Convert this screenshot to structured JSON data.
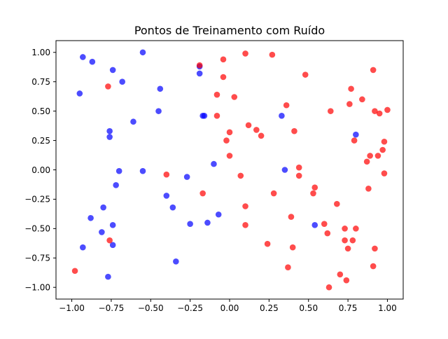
{
  "chart_data": {
    "type": "scatter",
    "title": "Pontos de Treinamento com Ruído",
    "xlabel": "",
    "ylabel": "",
    "xlim": [
      -1.1,
      1.1
    ],
    "ylim": [
      -1.1,
      1.1
    ],
    "xticks": [
      -1.0,
      -0.75,
      -0.5,
      -0.25,
      0.0,
      0.25,
      0.5,
      0.75,
      1.0
    ],
    "xtick_labels": [
      "−1.00",
      "−0.75",
      "−0.50",
      "−0.25",
      "0.00",
      "0.25",
      "0.50",
      "0.75",
      "1.00"
    ],
    "yticks": [
      -1.0,
      -0.75,
      -0.5,
      -0.25,
      0.0,
      0.25,
      0.5,
      0.75,
      1.0
    ],
    "ytick_labels": [
      "−1.00",
      "−0.75",
      "−0.50",
      "−0.25",
      "0.00",
      "0.25",
      "0.50",
      "0.75",
      "1.00"
    ],
    "grid": false,
    "series": [
      {
        "color": "#0000ff",
        "alpha": 0.7,
        "points": [
          [
            -0.93,
            0.96
          ],
          [
            -0.87,
            0.92
          ],
          [
            -0.55,
            1.0
          ],
          [
            -0.95,
            0.65
          ],
          [
            -0.74,
            0.85
          ],
          [
            -0.68,
            0.75
          ],
          [
            -0.19,
            0.82
          ],
          [
            -0.19,
            0.88
          ],
          [
            -0.44,
            0.69
          ],
          [
            -0.45,
            0.5
          ],
          [
            -0.16,
            0.46
          ],
          [
            -0.17,
            0.46
          ],
          [
            -0.61,
            0.41
          ],
          [
            -0.76,
            0.33
          ],
          [
            -0.76,
            0.28
          ],
          [
            0.33,
            0.46
          ],
          [
            0.8,
            0.3
          ],
          [
            -0.7,
            -0.01
          ],
          [
            -0.55,
            -0.01
          ],
          [
            -0.1,
            0.05
          ],
          [
            0.35,
            0.0
          ],
          [
            -0.72,
            -0.13
          ],
          [
            -0.27,
            -0.06
          ],
          [
            -0.4,
            -0.22
          ],
          [
            -0.8,
            -0.32
          ],
          [
            -0.36,
            -0.32
          ],
          [
            -0.88,
            -0.41
          ],
          [
            -0.74,
            -0.47
          ],
          [
            -0.81,
            -0.53
          ],
          [
            -0.25,
            -0.46
          ],
          [
            -0.14,
            -0.45
          ],
          [
            -0.07,
            -0.38
          ],
          [
            0.54,
            -0.47
          ],
          [
            -0.74,
            -0.64
          ],
          [
            -0.93,
            -0.66
          ],
          [
            -0.34,
            -0.78
          ],
          [
            -0.77,
            -0.91
          ]
        ]
      },
      {
        "color": "#ff0000",
        "alpha": 0.7,
        "points": [
          [
            -0.19,
            0.89
          ],
          [
            0.1,
            0.99
          ],
          [
            0.27,
            0.98
          ],
          [
            -0.04,
            0.94
          ],
          [
            -0.77,
            0.71
          ],
          [
            -0.04,
            0.79
          ],
          [
            0.48,
            0.81
          ],
          [
            0.91,
            0.85
          ],
          [
            -0.08,
            0.64
          ],
          [
            0.03,
            0.62
          ],
          [
            0.77,
            0.69
          ],
          [
            0.84,
            0.6
          ],
          [
            0.36,
            0.55
          ],
          [
            0.76,
            0.56
          ],
          [
            0.64,
            0.5
          ],
          [
            0.92,
            0.5
          ],
          [
            0.95,
            0.48
          ],
          [
            1.0,
            0.51
          ],
          [
            -0.08,
            0.46
          ],
          [
            0.12,
            0.38
          ],
          [
            0.17,
            0.34
          ],
          [
            0.0,
            0.32
          ],
          [
            0.41,
            0.33
          ],
          [
            0.2,
            0.29
          ],
          [
            -0.02,
            0.25
          ],
          [
            0.79,
            0.25
          ],
          [
            0.98,
            0.24
          ],
          [
            0.97,
            0.17
          ],
          [
            0.89,
            0.12
          ],
          [
            0.94,
            0.12
          ],
          [
            0.0,
            0.12
          ],
          [
            0.87,
            0.07
          ],
          [
            0.44,
            0.02
          ],
          [
            0.98,
            -0.03
          ],
          [
            -0.4,
            -0.04
          ],
          [
            0.44,
            -0.05
          ],
          [
            0.07,
            -0.05
          ],
          [
            0.54,
            -0.15
          ],
          [
            0.88,
            -0.16
          ],
          [
            -0.17,
            -0.2
          ],
          [
            0.28,
            -0.2
          ],
          [
            0.53,
            -0.2
          ],
          [
            0.68,
            -0.29
          ],
          [
            0.1,
            -0.31
          ],
          [
            0.39,
            -0.4
          ],
          [
            0.1,
            -0.47
          ],
          [
            0.6,
            -0.46
          ],
          [
            0.73,
            -0.5
          ],
          [
            0.8,
            -0.5
          ],
          [
            0.62,
            -0.54
          ],
          [
            -0.76,
            -0.6
          ],
          [
            0.73,
            -0.6
          ],
          [
            0.78,
            -0.6
          ],
          [
            0.24,
            -0.63
          ],
          [
            0.4,
            -0.66
          ],
          [
            0.75,
            -0.67
          ],
          [
            0.92,
            -0.67
          ],
          [
            0.37,
            -0.83
          ],
          [
            0.91,
            -0.82
          ],
          [
            0.7,
            -0.89
          ],
          [
            -0.98,
            -0.86
          ],
          [
            0.74,
            -0.94
          ],
          [
            0.63,
            -1.0
          ]
        ]
      }
    ]
  }
}
